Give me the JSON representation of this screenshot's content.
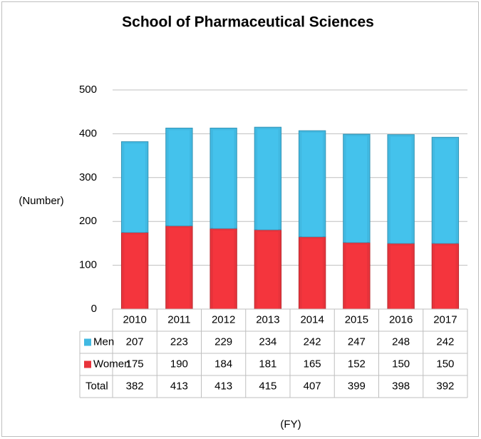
{
  "chart_data": {
    "type": "stacked_bar",
    "title": "School of Pharmaceutical Sciences",
    "y_label": "(Number)",
    "x_label": "(FY)",
    "categories": [
      "2010",
      "2011",
      "2012",
      "2013",
      "2014",
      "2015",
      "2016",
      "2017"
    ],
    "series": [
      {
        "name": "Men",
        "color": "#41b9e2",
        "values": [
          207,
          223,
          229,
          234,
          242,
          247,
          248,
          242
        ]
      },
      {
        "name": "Women",
        "color": "#e8333b",
        "values": [
          175,
          190,
          184,
          181,
          165,
          152,
          150,
          150
        ]
      }
    ],
    "totals": {
      "name": "Total",
      "values": [
        382,
        413,
        413,
        415,
        407,
        399,
        398,
        392
      ]
    },
    "ylim": [
      0,
      500
    ],
    "yticks": [
      0,
      100,
      200,
      300,
      400,
      500
    ],
    "grid": true
  }
}
